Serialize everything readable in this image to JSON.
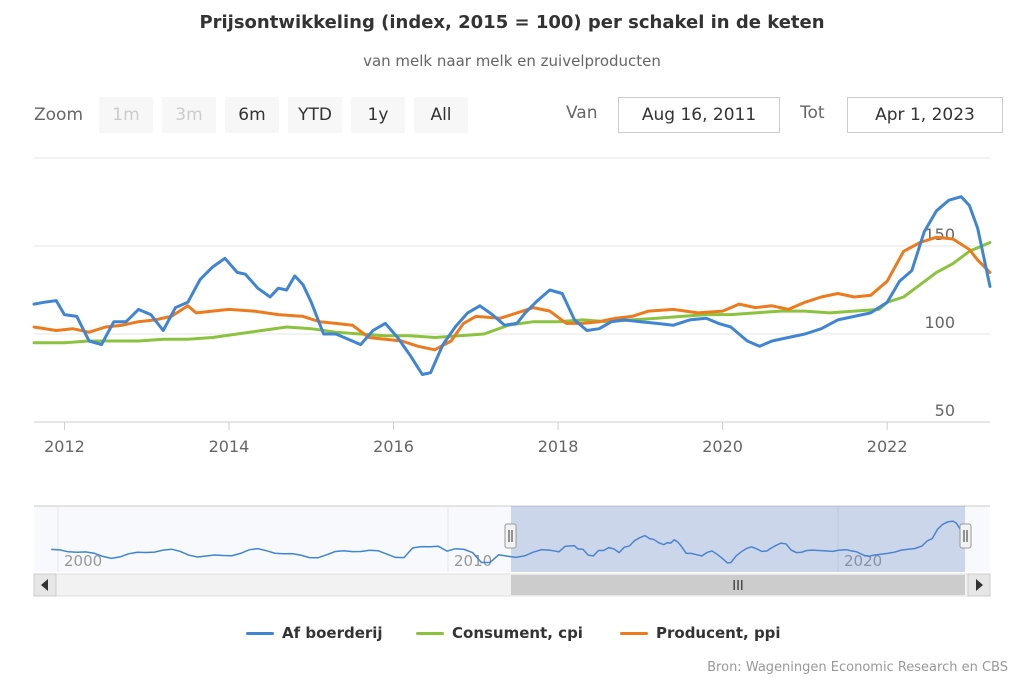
{
  "title": "Prijsontwikkeling (index, 2015 = 100) per schakel in de keten",
  "subtitle": "van melk naar melk en zuivelproducten",
  "zoom": {
    "label": "Zoom",
    "buttons": [
      {
        "label": "1m",
        "enabled": false
      },
      {
        "label": "3m",
        "enabled": false
      },
      {
        "label": "6m",
        "enabled": true
      },
      {
        "label": "YTD",
        "enabled": true
      },
      {
        "label": "1y",
        "enabled": true
      },
      {
        "label": "All",
        "enabled": true
      }
    ]
  },
  "range": {
    "from_label": "Van",
    "from": "Aug 16, 2011",
    "to_label": "Tot",
    "to": "Apr 1, 2023"
  },
  "navigator": {
    "tick_labels": [
      "2000",
      "2010",
      "2020"
    ],
    "scroll_grip": "III"
  },
  "credits": "Bron: Wageningen Economic Research en CBS",
  "colors": {
    "boerderij": "#3f85d4",
    "consument": "#8cc33e",
    "producent": "#ee7a1e"
  },
  "chart_data": {
    "type": "line",
    "title": "Prijsontwikkeling (index, 2015 = 100) per schakel in de keten",
    "xlim": [
      2011.63,
      2023.25
    ],
    "ylim": [
      50,
      200
    ],
    "y_ticks": [
      50,
      100,
      150
    ],
    "x_ticks": [
      2012,
      2014,
      2016,
      2018,
      2020,
      2022
    ],
    "legend_position": "bottom-center",
    "series": [
      {
        "name": "Af boerderij",
        "color": "#3f85d4",
        "x": [
          2011.63,
          2011.75,
          2011.9,
          2012.0,
          2012.15,
          2012.3,
          2012.45,
          2012.6,
          2012.75,
          2012.9,
          2013.05,
          2013.2,
          2013.35,
          2013.5,
          2013.65,
          2013.8,
          2013.95,
          2014.1,
          2014.2,
          2014.35,
          2014.5,
          2014.6,
          2014.7,
          2014.8,
          2014.9,
          2015.0,
          2015.15,
          2015.3,
          2015.45,
          2015.6,
          2015.75,
          2015.9,
          2016.05,
          2016.2,
          2016.35,
          2016.45,
          2016.6,
          2016.75,
          2016.9,
          2017.05,
          2017.2,
          2017.35,
          2017.5,
          2017.6,
          2017.75,
          2017.9,
          2018.05,
          2018.2,
          2018.35,
          2018.5,
          2018.65,
          2018.8,
          2019.0,
          2019.2,
          2019.4,
          2019.6,
          2019.8,
          2019.95,
          2020.1,
          2020.3,
          2020.45,
          2020.6,
          2020.8,
          2021.0,
          2021.2,
          2021.4,
          2021.6,
          2021.8,
          2022.0,
          2022.15,
          2022.3,
          2022.45,
          2022.6,
          2022.75,
          2022.9,
          2023.0,
          2023.1,
          2023.25
        ],
        "values": [
          117,
          118,
          119,
          111,
          110,
          96,
          94,
          107,
          107,
          114,
          111,
          102,
          115,
          118,
          131,
          138,
          143,
          135,
          134,
          126,
          121,
          126,
          125,
          133,
          128,
          118,
          100,
          100,
          97,
          94,
          102,
          106,
          98,
          88,
          77,
          78,
          94,
          104,
          112,
          116,
          111,
          105,
          106,
          112,
          119,
          125,
          123,
          108,
          102,
          103,
          107,
          108,
          107,
          106,
          105,
          108,
          109,
          106,
          104,
          96,
          93,
          96,
          98,
          100,
          103,
          108,
          110,
          112,
          118,
          130,
          136,
          158,
          170,
          176,
          178,
          173,
          160,
          127
        ]
      },
      {
        "name": "Consument, cpi",
        "color": "#8cc33e",
        "x": [
          2011.63,
          2012.0,
          2012.3,
          2012.6,
          2012.9,
          2013.2,
          2013.5,
          2013.8,
          2014.1,
          2014.4,
          2014.7,
          2015.0,
          2015.3,
          2015.6,
          2015.9,
          2016.2,
          2016.5,
          2016.8,
          2017.1,
          2017.4,
          2017.7,
          2018.0,
          2018.3,
          2018.6,
          2018.9,
          2019.2,
          2019.5,
          2019.8,
          2020.1,
          2020.4,
          2020.7,
          2021.0,
          2021.3,
          2021.6,
          2021.9,
          2022.0,
          2022.2,
          2022.4,
          2022.6,
          2022.8,
          2023.0,
          2023.25
        ],
        "values": [
          95,
          95,
          96,
          96,
          96,
          97,
          97,
          98,
          100,
          102,
          104,
          103,
          101,
          100,
          99,
          99,
          98,
          99,
          100,
          105,
          107,
          107,
          108,
          107,
          108,
          109,
          110,
          111,
          111,
          112,
          113,
          113,
          112,
          113,
          114,
          118,
          121,
          128,
          135,
          140,
          147,
          152
        ]
      },
      {
        "name": "Producent, ppi",
        "color": "#ee7a1e",
        "x": [
          2011.63,
          2011.9,
          2012.1,
          2012.3,
          2012.5,
          2012.7,
          2012.9,
          2013.1,
          2013.3,
          2013.5,
          2013.6,
          2013.8,
          2014.0,
          2014.3,
          2014.6,
          2014.9,
          2015.1,
          2015.3,
          2015.5,
          2015.7,
          2015.9,
          2016.1,
          2016.3,
          2016.5,
          2016.7,
          2016.85,
          2017.0,
          2017.3,
          2017.5,
          2017.7,
          2017.9,
          2018.1,
          2018.3,
          2018.5,
          2018.7,
          2018.9,
          2019.1,
          2019.4,
          2019.7,
          2020.0,
          2020.2,
          2020.4,
          2020.6,
          2020.8,
          2021.0,
          2021.2,
          2021.4,
          2021.6,
          2021.8,
          2022.0,
          2022.2,
          2022.4,
          2022.6,
          2022.8,
          2023.0,
          2023.1,
          2023.25
        ],
        "values": [
          104,
          102,
          103,
          101,
          104,
          105,
          107,
          108,
          110,
          116,
          112,
          113,
          114,
          113,
          111,
          110,
          107,
          106,
          105,
          98,
          97,
          96,
          93,
          91,
          96,
          106,
          110,
          109,
          112,
          115,
          113,
          106,
          106,
          107,
          109,
          110,
          113,
          114,
          112,
          113,
          117,
          115,
          116,
          114,
          118,
          121,
          123,
          121,
          122,
          130,
          147,
          152,
          155,
          154,
          148,
          142,
          135
        ]
      }
    ]
  }
}
